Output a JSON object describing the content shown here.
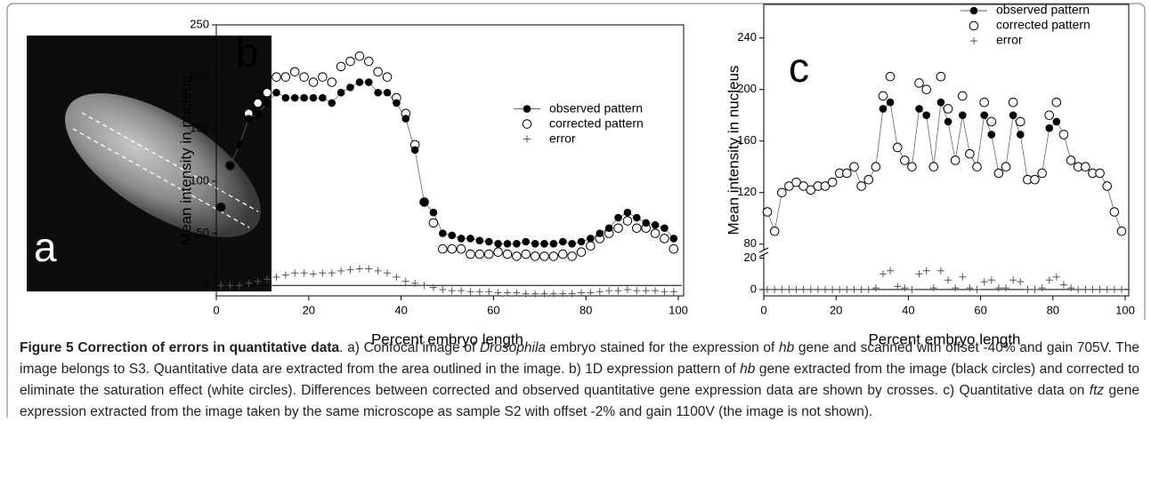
{
  "panel_a": {
    "label": "a"
  },
  "chart_data": [
    {
      "type": "scatter",
      "panel_label": "b",
      "xlabel": "Percent embryo length",
      "ylabel": "Mean intensity in nucleus",
      "xlim": [
        0,
        100
      ],
      "xticks": [
        0,
        20,
        40,
        60,
        80,
        100
      ],
      "ylim": [
        -10,
        250
      ],
      "yticks": [
        0,
        50,
        100,
        150,
        200,
        250
      ],
      "hline": 0,
      "legend": "center right",
      "x": [
        1,
        3,
        5,
        7,
        9,
        11,
        13,
        15,
        17,
        19,
        21,
        23,
        25,
        27,
        29,
        31,
        33,
        35,
        37,
        39,
        41,
        43,
        45,
        47,
        49,
        51,
        53,
        55,
        57,
        59,
        61,
        63,
        65,
        67,
        69,
        71,
        73,
        75,
        77,
        79,
        81,
        83,
        85,
        87,
        89,
        91,
        93,
        95,
        97,
        99
      ],
      "series": [
        {
          "name": "corrected pattern",
          "color": "#000000",
          "marker": "open-circle",
          "values": [
            75,
            115,
            135,
            165,
            175,
            185,
            200,
            200,
            205,
            200,
            195,
            200,
            195,
            210,
            215,
            220,
            215,
            205,
            200,
            180,
            165,
            135,
            80,
            60,
            35,
            35,
            35,
            30,
            30,
            30,
            32,
            30,
            28,
            30,
            28,
            28,
            28,
            30,
            28,
            32,
            38,
            45,
            50,
            55,
            62,
            55,
            55,
            50,
            45,
            35
          ]
        },
        {
          "name": "observed pattern",
          "color": "#000000",
          "marker": "filled-circle",
          "line": true,
          "values": [
            75,
            115,
            135,
            160,
            165,
            175,
            185,
            180,
            180,
            180,
            180,
            180,
            175,
            185,
            190,
            195,
            195,
            185,
            185,
            175,
            160,
            130,
            80,
            70,
            50,
            48,
            45,
            45,
            43,
            42,
            40,
            40,
            40,
            42,
            40,
            40,
            40,
            42,
            40,
            42,
            45,
            50,
            55,
            65,
            70,
            65,
            60,
            58,
            55,
            45
          ]
        },
        {
          "name": "error",
          "color": "#555555",
          "marker": "plus",
          "values": [
            0,
            0,
            0,
            2,
            4,
            6,
            8,
            10,
            12,
            12,
            11,
            12,
            12,
            14,
            15,
            16,
            16,
            14,
            12,
            8,
            4,
            2,
            0,
            -2,
            -4,
            -5,
            -5,
            -6,
            -6,
            -6,
            -7,
            -7,
            -7,
            -8,
            -8,
            -8,
            -8,
            -8,
            -8,
            -7,
            -7,
            -6,
            -5,
            -5,
            -4,
            -5,
            -5,
            -5,
            -6,
            -6
          ]
        }
      ]
    },
    {
      "type": "scatter",
      "panel_label": "c",
      "xlabel": "Percent embryo length",
      "ylabel": "Mean intensity in nucleus",
      "xlim": [
        0,
        100
      ],
      "xticks": [
        0,
        20,
        40,
        60,
        80,
        100
      ],
      "ylim": [
        75,
        266
      ],
      "yticks": [
        80,
        120,
        160,
        200,
        240
      ],
      "y2lim": [
        -4,
        22
      ],
      "y2ticks": [
        0,
        20
      ],
      "hline": 0,
      "legend": "upper right",
      "x": [
        1,
        3,
        5,
        7,
        9,
        11,
        13,
        15,
        17,
        19,
        21,
        23,
        25,
        27,
        29,
        31,
        33,
        35,
        37,
        39,
        41,
        43,
        45,
        47,
        49,
        51,
        53,
        55,
        57,
        59,
        61,
        63,
        65,
        67,
        69,
        71,
        73,
        75,
        77,
        79,
        81,
        83,
        85,
        87,
        89,
        91,
        93,
        95,
        97,
        99
      ],
      "series": [
        {
          "name": "observed pattern",
          "color": "#000000",
          "marker": "filled-circle",
          "line": true,
          "values": [
            105,
            90,
            120,
            125,
            128,
            125,
            122,
            125,
            125,
            128,
            135,
            135,
            140,
            125,
            130,
            140,
            185,
            190,
            155,
            145,
            140,
            185,
            180,
            140,
            190,
            175,
            145,
            180,
            150,
            140,
            180,
            165,
            135,
            140,
            180,
            165,
            130,
            130,
            135,
            170,
            175,
            165,
            145,
            140,
            140,
            135,
            135,
            125,
            105,
            90
          ]
        },
        {
          "name": "corrected pattern",
          "color": "#000000",
          "marker": "open-circle",
          "values": [
            105,
            90,
            120,
            125,
            128,
            125,
            122,
            125,
            125,
            128,
            135,
            135,
            140,
            125,
            130,
            140,
            195,
            210,
            155,
            145,
            140,
            205,
            200,
            140,
            210,
            185,
            145,
            195,
            150,
            140,
            190,
            175,
            135,
            140,
            190,
            175,
            130,
            130,
            135,
            180,
            190,
            165,
            145,
            140,
            140,
            135,
            135,
            125,
            105,
            90
          ]
        },
        {
          "name": "error",
          "color": "#555555",
          "marker": "plus",
          "axis": "y2",
          "values": [
            0,
            0,
            0,
            0,
            0,
            0,
            0,
            0,
            0,
            0,
            0,
            0,
            0,
            0,
            0,
            1,
            10,
            12,
            2,
            1,
            0,
            10,
            12,
            1,
            12,
            6,
            1,
            8,
            1,
            0,
            5,
            6,
            1,
            1,
            6,
            5,
            0,
            0,
            1,
            6,
            8,
            3,
            1,
            0,
            0,
            0,
            0,
            0,
            0,
            0
          ]
        }
      ]
    }
  ],
  "caption": [
    {
      "text": "Figure 5 Correction of errors in quantitative data",
      "style": "bold"
    },
    {
      "text": ". a) Confocal image of ",
      "style": "normal"
    },
    {
      "text": "Drosophila",
      "style": "italic"
    },
    {
      "text": " embryo stained for the expression of ",
      "style": "normal"
    },
    {
      "text": "hb",
      "style": "italic"
    },
    {
      "text": " gene and scanned with offset -40% and gain 705V. The image belongs to S3. Quantitative data are extracted from the area outlined in the image. b) 1D expression pattern of ",
      "style": "normal"
    },
    {
      "text": "hb",
      "style": "italic"
    },
    {
      "text": " gene extracted from the image (black circles) and corrected to eliminate the saturation effect (white circles). Differences between corrected and observed quantitative gene expression data are shown by crosses. c) Quantitative data on ",
      "style": "normal"
    },
    {
      "text": "ftz",
      "style": "italic"
    },
    {
      "text": " gene expression extracted from the image taken by the same microscope as sample S2 with offset -2% and gain 1100V (the image is not shown).",
      "style": "normal"
    }
  ]
}
